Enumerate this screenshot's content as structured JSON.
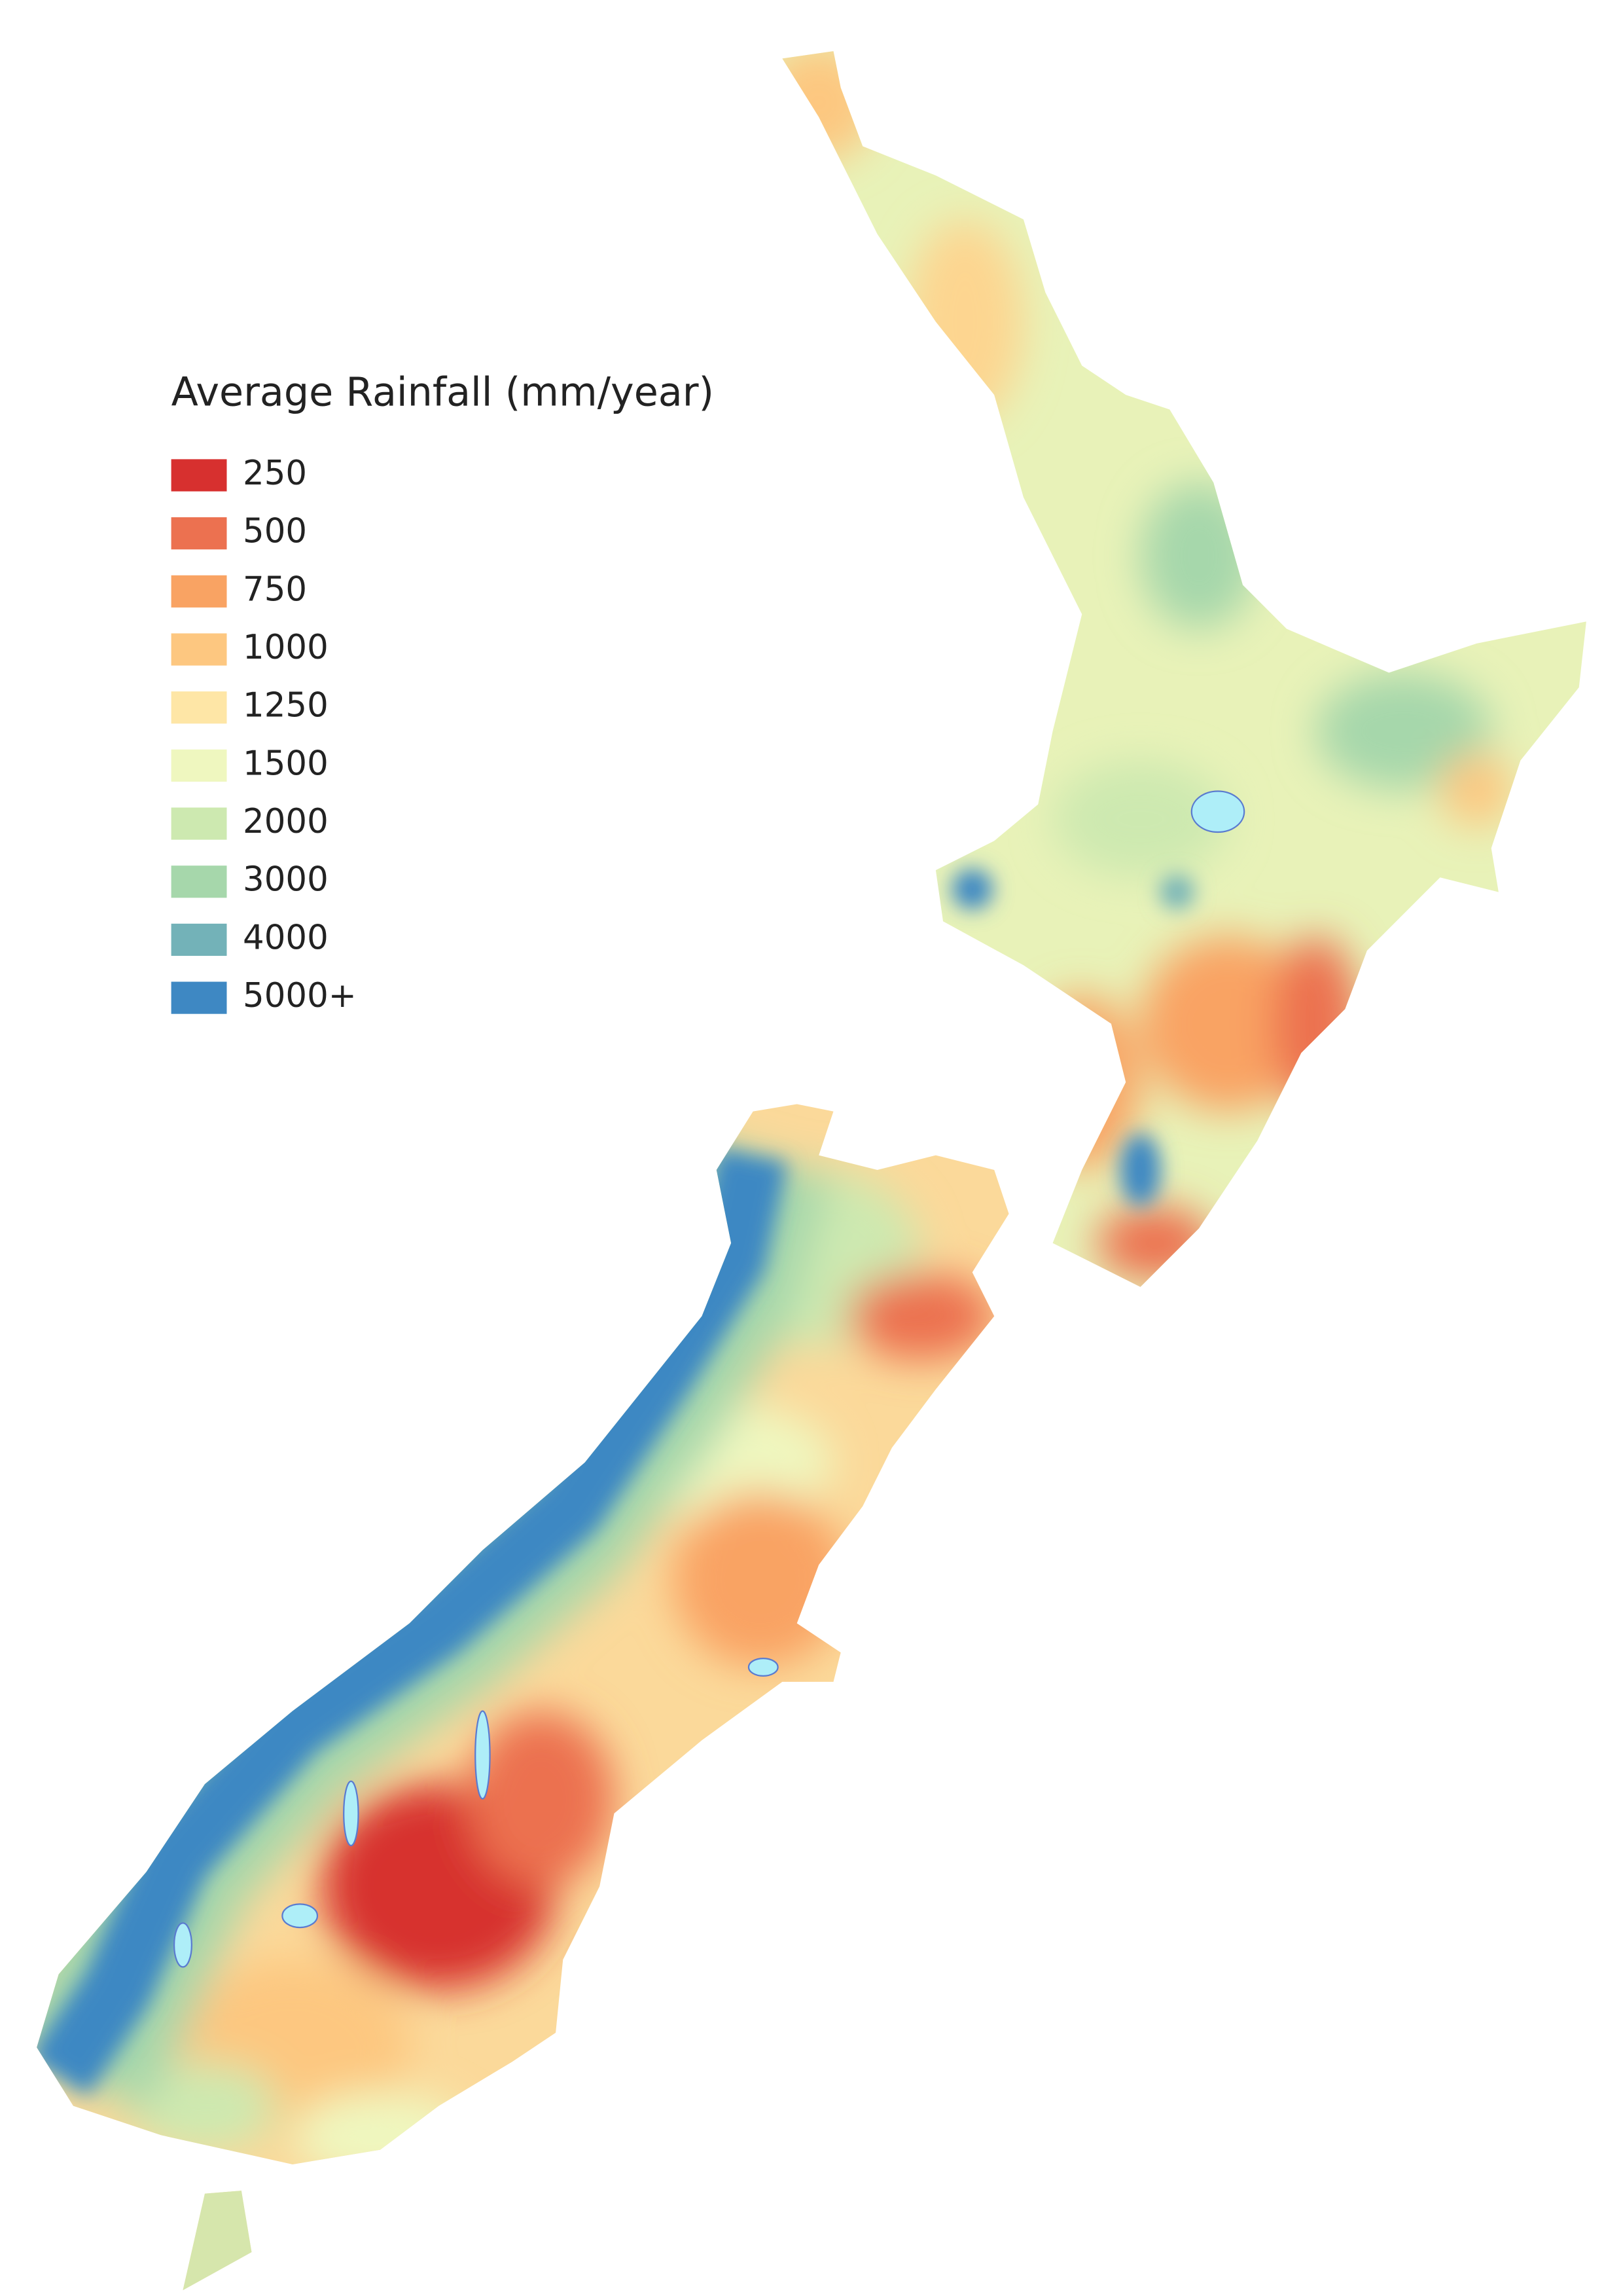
{
  "legend": {
    "title": "Average Rainfall (mm/year)",
    "items": [
      {
        "label": "250",
        "color": "#d7302f"
      },
      {
        "label": "500",
        "color": "#ec7150"
      },
      {
        "label": "750",
        "color": "#f9a363"
      },
      {
        "label": "1000",
        "color": "#fdc780"
      },
      {
        "label": "1250",
        "color": "#fee6a6"
      },
      {
        "label": "1500",
        "color": "#eff7bf"
      },
      {
        "label": "2000",
        "color": "#cde9b0"
      },
      {
        "label": "3000",
        "color": "#a6d7ab"
      },
      {
        "label": "4000",
        "color": "#73b2b8"
      },
      {
        "label": "5000+",
        "color": "#3e88c3"
      }
    ]
  }
}
